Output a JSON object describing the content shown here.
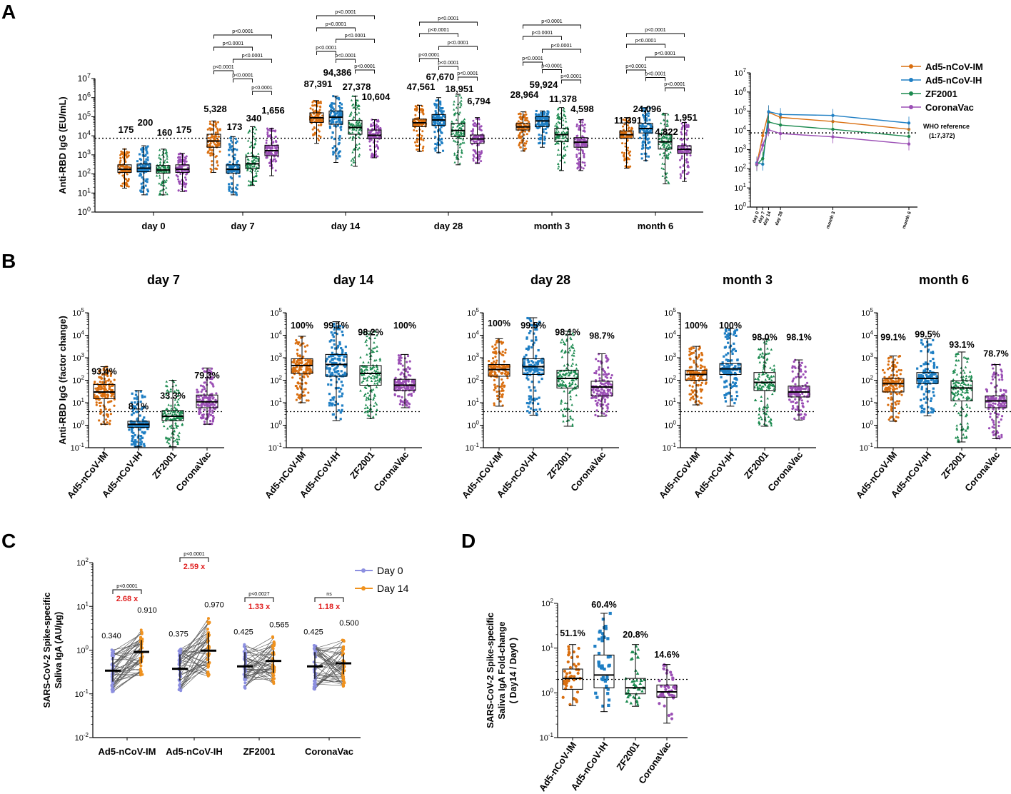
{
  "colors": {
    "im": "#d96e0f",
    "ih": "#1f7fc4",
    "zf": "#1b8a4f",
    "cv": "#9b4fb5",
    "day0": "#8c8fe0",
    "day14": "#f0921e",
    "red": "#e02020"
  },
  "panels": {
    "a": "A",
    "b": "B",
    "c": "C",
    "d": "D"
  },
  "chart_data": [
    {
      "id": "A_main",
      "type": "box",
      "title": "",
      "ylabel": "Anti-RBD IgG (EU/mL)",
      "yscale": "log",
      "ylim": [
        1,
        10000000
      ],
      "yticks": [
        [
          "10^0",
          1
        ],
        [
          "10^1",
          10
        ],
        [
          "10^2",
          100
        ],
        [
          "10^3",
          1000
        ],
        [
          "10^4",
          10000
        ],
        [
          "10^5",
          100000
        ],
        [
          "10^6",
          1000000
        ],
        [
          "10^7",
          10000000
        ]
      ],
      "reference_line": 7372,
      "timepoints": [
        "day 0",
        "day 7",
        "day 14",
        "day 28",
        "month 3",
        "month 6"
      ],
      "groups": [
        {
          "tp": 0,
          "series": "im",
          "median": 175,
          "label": "175",
          "q1": 120,
          "q3": 300,
          "min": 18,
          "max": 2000
        },
        {
          "tp": 0,
          "series": "ih",
          "median": 200,
          "label": "200",
          "q1": 130,
          "q3": 330,
          "min": 8,
          "max": 3000
        },
        {
          "tp": 0,
          "series": "zf",
          "median": 160,
          "label": "160",
          "q1": 110,
          "q3": 280,
          "min": 8,
          "max": 2000
        },
        {
          "tp": 0,
          "series": "cv",
          "median": 175,
          "label": "175",
          "q1": 120,
          "q3": 300,
          "min": 12,
          "max": 1200
        },
        {
          "tp": 1,
          "series": "im",
          "median": 5328,
          "label": "5,328",
          "q1": 2500,
          "q3": 12000,
          "min": 120,
          "max": 60000
        },
        {
          "tp": 1,
          "series": "ih",
          "median": 173,
          "label": "173",
          "q1": 110,
          "q3": 300,
          "min": 8,
          "max": 9000
        },
        {
          "tp": 1,
          "series": "zf",
          "median": 340,
          "label": "340",
          "q1": 190,
          "q3": 800,
          "min": 25,
          "max": 30000
        },
        {
          "tp": 1,
          "series": "cv",
          "median": 1656,
          "label": "1,656",
          "q1": 900,
          "q3": 3200,
          "min": 80,
          "max": 25000
        },
        {
          "tp": 2,
          "series": "im",
          "median": 87391,
          "label": "87,391",
          "q1": 50000,
          "q3": 160000,
          "min": 4000,
          "max": 700000
        },
        {
          "tp": 2,
          "series": "ih",
          "median": 94386,
          "label": "94,386",
          "q1": 40000,
          "q3": 200000,
          "min": 400,
          "max": 1200000
        },
        {
          "tp": 2,
          "series": "zf",
          "median": 27378,
          "label": "27,378",
          "q1": 12000,
          "q3": 65000,
          "min": 250,
          "max": 1200000
        },
        {
          "tp": 2,
          "series": "cv",
          "median": 10604,
          "label": "10,604",
          "q1": 7000,
          "q3": 20000,
          "min": 700,
          "max": 70000
        },
        {
          "tp": 3,
          "series": "im",
          "median": 47561,
          "label": "47,561",
          "q1": 30000,
          "q3": 75000,
          "min": 1500,
          "max": 400000
        },
        {
          "tp": 3,
          "series": "ih",
          "median": 67670,
          "label": "67,670",
          "q1": 35000,
          "q3": 130000,
          "min": 1300,
          "max": 1000000
        },
        {
          "tp": 3,
          "series": "zf",
          "median": 18951,
          "label": "18,951",
          "q1": 9000,
          "q3": 45000,
          "min": 300,
          "max": 1500000
        },
        {
          "tp": 3,
          "series": "cv",
          "median": 6794,
          "label": "6,794",
          "q1": 4000,
          "q3": 11000,
          "min": 350,
          "max": 90000
        },
        {
          "tp": 4,
          "series": "im",
          "median": 28964,
          "label": "28,964",
          "q1": 20000,
          "q3": 45000,
          "min": 1600,
          "max": 180000
        },
        {
          "tp": 4,
          "series": "ih",
          "median": 59924,
          "label": "59,924",
          "q1": 30000,
          "q3": 100000,
          "min": 2500,
          "max": 200000
        },
        {
          "tp": 4,
          "series": "zf",
          "median": 11378,
          "label": "11,378",
          "q1": 5000,
          "q3": 25000,
          "min": 150,
          "max": 300000
        },
        {
          "tp": 4,
          "series": "cv",
          "median": 4598,
          "label": "4,598",
          "q1": 2500,
          "q3": 8000,
          "min": 150,
          "max": 70000
        },
        {
          "tp": 5,
          "series": "im",
          "median": 11391,
          "label": "11,391",
          "q1": 7500,
          "q3": 18000,
          "min": 200,
          "max": 90000
        },
        {
          "tp": 5,
          "series": "ih",
          "median": 24096,
          "label": "24,096",
          "q1": 14000,
          "q3": 45000,
          "min": 500,
          "max": 300000
        },
        {
          "tp": 5,
          "series": "zf",
          "median": 4822,
          "label": "4,822",
          "q1": 2000,
          "q3": 12000,
          "min": 30,
          "max": 150000
        },
        {
          "tp": 5,
          "series": "cv",
          "median": 1951,
          "label": "1,951",
          "q1": 1200,
          "q3": 3000,
          "min": 40,
          "max": 50000
        }
      ],
      "pvalue": "p<0.0001"
    },
    {
      "id": "A_inset",
      "type": "line",
      "ylabel": "",
      "yscale": "log",
      "ylim": [
        1,
        10000000
      ],
      "yticks": [
        [
          "10^0",
          1
        ],
        [
          "10^1",
          10
        ],
        [
          "10^2",
          100
        ],
        [
          "10^3",
          1000
        ],
        [
          "10^4",
          10000
        ],
        [
          "10^5",
          100000
        ],
        [
          "10^6",
          1000000
        ],
        [
          "10^7",
          10000000
        ]
      ],
      "x": [
        0,
        7,
        14,
        28,
        90,
        180
      ],
      "xlabels": [
        [
          "day 0",
          0
        ],
        [
          "day 7",
          7
        ],
        [
          "day 14",
          14
        ],
        [
          "day 28",
          28
        ],
        [
          "month 3",
          90
        ],
        [
          "month 6",
          180
        ]
      ],
      "series": [
        {
          "name": "Ad5-nCoV-IM",
          "key": "im",
          "values": [
            175,
            5328,
            87391,
            47561,
            28964,
            11391
          ]
        },
        {
          "name": "Ad5-nCoV-IH",
          "key": "ih",
          "values": [
            200,
            173,
            94386,
            67670,
            59924,
            24096
          ]
        },
        {
          "name": "ZF2001",
          "key": "zf",
          "values": [
            160,
            340,
            27378,
            18951,
            11378,
            4822
          ]
        },
        {
          "name": "CoronaVac",
          "key": "cv",
          "values": [
            175,
            1656,
            10604,
            6794,
            4598,
            1951
          ]
        }
      ],
      "reference_line": 7372,
      "reference_label1": "WHO reference",
      "reference_label2": "(1:7,372)"
    },
    {
      "id": "B",
      "type": "box",
      "ylabel": "Anti-RBD IgG (factor change)",
      "yscale": "log",
      "ylim": [
        0.1,
        100000
      ],
      "yticks": [
        [
          "10^-1",
          0.1
        ],
        [
          "10^0",
          1
        ],
        [
          "10^1",
          10
        ],
        [
          "10^2",
          100
        ],
        [
          "10^3",
          1000
        ],
        [
          "10^4",
          10000
        ],
        [
          "10^5",
          100000
        ]
      ],
      "reference_line": 4,
      "categories": [
        "Ad5-nCoV-IM",
        "Ad5-nCoV-IH",
        "ZF2001",
        "CoronaVac"
      ],
      "panels": [
        {
          "title": "day 7",
          "pct": [
            "93.4%",
            "8.1%",
            "33.3%",
            "79.3%"
          ],
          "pct_at": [
            180,
            5,
            15,
            120
          ],
          "boxes": [
            {
              "median": 30,
              "q1": 15,
              "q3": 65,
              "min": 1.1,
              "max": 400
            },
            {
              "median": 1.1,
              "q1": 0.8,
              "q3": 1.5,
              "min": 0.11,
              "max": 35
            },
            {
              "median": 2.5,
              "q1": 1.6,
              "q3": 4.5,
              "min": 0.11,
              "max": 100
            },
            {
              "median": 11,
              "q1": 6,
              "q3": 22,
              "min": 1.1,
              "max": 350
            }
          ]
        },
        {
          "title": "day 14",
          "pct": [
            "100%",
            "99.1%",
            "98.2%",
            "100%"
          ],
          "pct_at": [
            20000,
            20000,
            10000,
            20000
          ],
          "boxes": [
            {
              "median": 450,
              "q1": 200,
              "q3": 900,
              "min": 10,
              "max": 9000
            },
            {
              "median": 500,
              "q1": 150,
              "q3": 1400,
              "min": 1.6,
              "max": 40000
            },
            {
              "median": 200,
              "q1": 60,
              "q3": 450,
              "min": 2,
              "max": 15000
            },
            {
              "median": 60,
              "q1": 35,
              "q3": 110,
              "min": 6,
              "max": 1400
            }
          ]
        },
        {
          "title": "day 28",
          "pct": [
            "100%",
            "99.5%",
            "98.1%",
            "98.7%"
          ],
          "pct_at": [
            25000,
            20000,
            10000,
            7000
          ],
          "boxes": [
            {
              "median": 300,
              "q1": 150,
              "q3": 500,
              "min": 7,
              "max": 7000
            },
            {
              "median": 400,
              "q1": 180,
              "q3": 900,
              "min": 2.8,
              "max": 60000
            },
            {
              "median": 120,
              "q1": 45,
              "q3": 280,
              "min": 0.9,
              "max": 15000
            },
            {
              "median": 50,
              "q1": 20,
              "q3": 90,
              "min": 2.5,
              "max": 1500
            }
          ]
        },
        {
          "title": "month 3",
          "pct": [
            "100%",
            "100%",
            "98.0%",
            "98.1%"
          ],
          "pct_at": [
            20000,
            20000,
            6000,
            6000
          ],
          "boxes": [
            {
              "median": 180,
              "q1": 100,
              "q3": 280,
              "min": 8,
              "max": 3200
            },
            {
              "median": 320,
              "q1": 180,
              "q3": 550,
              "min": 7,
              "max": 20000
            },
            {
              "median": 80,
              "q1": 35,
              "q3": 220,
              "min": 0.9,
              "max": 7000
            },
            {
              "median": 30,
              "q1": 18,
              "q3": 55,
              "min": 1.7,
              "max": 800
            }
          ]
        },
        {
          "title": "month 6",
          "pct": [
            "99.1%",
            "99.5%",
            "93.1%",
            "78.7%"
          ],
          "pct_at": [
            6000,
            8000,
            2800,
            1100
          ],
          "boxes": [
            {
              "median": 70,
              "q1": 30,
              "q3": 120,
              "min": 1.5,
              "max": 1200
            },
            {
              "median": 120,
              "q1": 70,
              "q3": 220,
              "min": 2.6,
              "max": 7000
            },
            {
              "median": 45,
              "q1": 12,
              "q3": 95,
              "min": 0.18,
              "max": 1800
            },
            {
              "median": 12,
              "q1": 6,
              "q3": 20,
              "min": 0.25,
              "max": 500
            }
          ]
        }
      ]
    },
    {
      "id": "C",
      "type": "paired-scatter",
      "ylabel1": "SARS-CoV-2  Spike-specific",
      "ylabel2": "Saliva IgA (AU/µg)",
      "yscale": "log",
      "ylim": [
        0.01,
        100
      ],
      "yticks": [
        [
          "10^-2",
          0.01
        ],
        [
          "10^-1",
          0.1
        ],
        [
          "10^0",
          1
        ],
        [
          "10^1",
          10
        ],
        [
          "10^2",
          100
        ]
      ],
      "legend": [
        "Day 0",
        "Day 14"
      ],
      "categories": [
        "Ad5-nCoV-IM",
        "Ad5-nCoV-IH",
        "ZF2001",
        "CoronaVac"
      ],
      "groups": [
        {
          "day0_median": 0.34,
          "day0_label": "0.340",
          "day14_median": 0.91,
          "day14_label": "0.910",
          "pvalue": "p<0.0001",
          "fold": "2.68 x",
          "d0_q": [
            0.19,
            0.7
          ],
          "d14_q": [
            0.5,
            1.7
          ]
        },
        {
          "day0_median": 0.375,
          "day0_label": "0.375",
          "day14_median": 0.97,
          "day14_label": "0.970",
          "pvalue": "p<0.0001",
          "fold": "2.59 x",
          "d0_q": [
            0.2,
            0.8
          ],
          "d14_q": [
            0.5,
            2.5
          ]
        },
        {
          "day0_median": 0.425,
          "day0_label": "0.425",
          "day14_median": 0.565,
          "day14_label": "0.565",
          "pvalue": "p<0.0027",
          "fold": "1.33 x",
          "d0_q": [
            0.23,
            0.9
          ],
          "d14_q": [
            0.3,
            1.0
          ]
        },
        {
          "day0_median": 0.425,
          "day0_label": "0.425",
          "day14_median": 0.5,
          "day14_label": "0.500",
          "pvalue": "ns",
          "fold": "1.18 x",
          "d0_q": [
            0.22,
            0.9
          ],
          "d14_q": [
            0.28,
            0.8
          ]
        }
      ]
    },
    {
      "id": "D",
      "type": "box",
      "ylabel1": "SARS-CoV-2  Spike-specific",
      "ylabel2": "Saliva IgA Fold-change",
      "ylabel3": "( Day14 / Day0 )",
      "yscale": "log",
      "ylim": [
        0.1,
        100
      ],
      "yticks": [
        [
          "10^-1",
          0.1
        ],
        [
          "10^0",
          1
        ],
        [
          "10^1",
          10
        ],
        [
          "10^2",
          100
        ]
      ],
      "reference_line": 2,
      "categories": [
        "Ad5-nCoV-IM",
        "Ad5-nCoV-IH",
        "ZF2001",
        "CoronaVac"
      ],
      "pct": [
        "51.1%",
        "60.4%",
        "20.8%",
        "14.6%"
      ],
      "boxes": [
        {
          "median": 2.1,
          "q1": 1.2,
          "q3": 3.4,
          "min": 0.52,
          "max": 12
        },
        {
          "median": 2.5,
          "q1": 1.3,
          "q3": 7,
          "min": 0.38,
          "max": 60
        },
        {
          "median": 1.3,
          "q1": 0.95,
          "q3": 2.1,
          "min": 0.5,
          "max": 12
        },
        {
          "median": 1.05,
          "q1": 0.8,
          "q3": 1.5,
          "min": 0.21,
          "max": 4.3
        }
      ]
    }
  ],
  "legend": [
    "Ad5-nCoV-IM",
    "Ad5-nCoV-IH",
    "ZF2001",
    "CoronaVac"
  ]
}
